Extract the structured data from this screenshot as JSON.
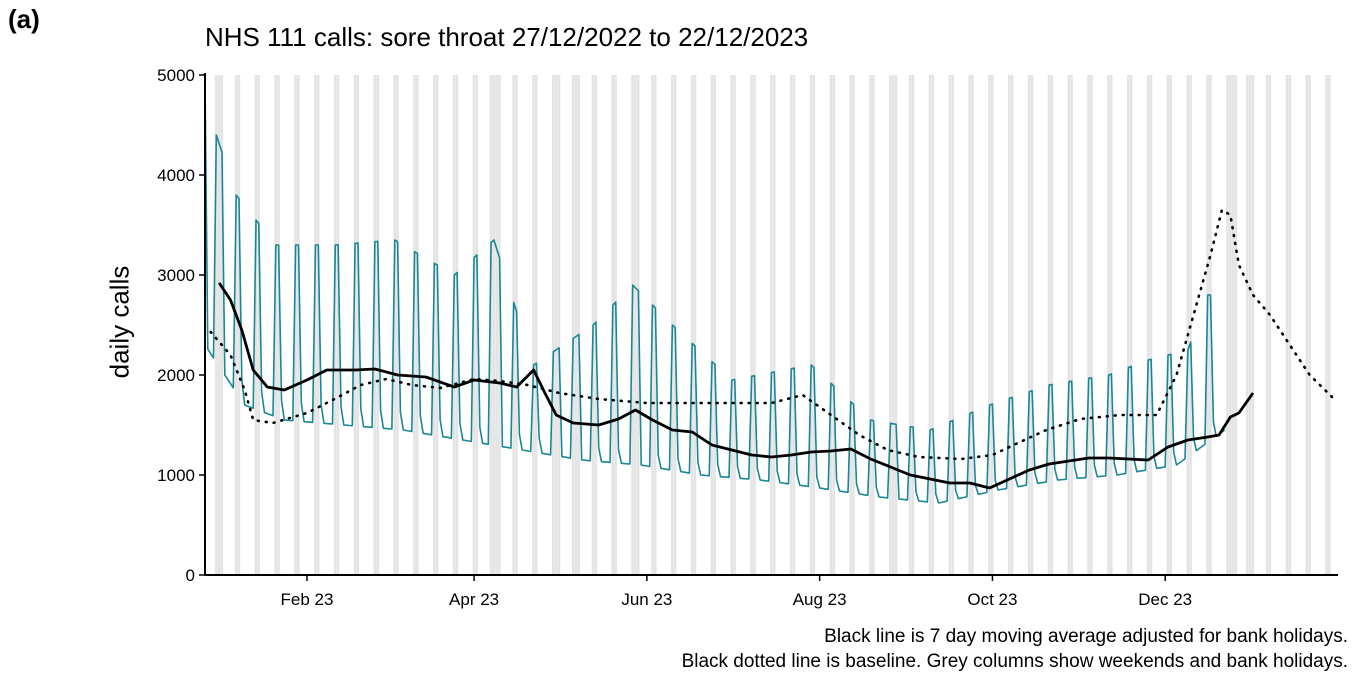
{
  "panel_label": "(a)",
  "chart_data": {
    "type": "line",
    "title": "NHS 111 calls: sore throat 27/12/2022 to 22/12/2023",
    "xlabel": "",
    "ylabel": "daily calls",
    "ylim": [
      0,
      5000
    ],
    "yticks": [
      0,
      1000,
      2000,
      3000,
      4000,
      5000
    ],
    "xlim": [
      "2022-12-27",
      "2024-01-31"
    ],
    "xticks": [
      {
        "date": "2023-02-01",
        "label": "Feb 23"
      },
      {
        "date": "2023-04-01",
        "label": "Apr 23"
      },
      {
        "date": "2023-06-01",
        "label": "Jun 23"
      },
      {
        "date": "2023-08-01",
        "label": "Aug 23"
      },
      {
        "date": "2023-10-01",
        "label": "Oct 23"
      },
      {
        "date": "2023-12-01",
        "label": "Dec 23"
      }
    ],
    "grid": false,
    "colors": {
      "daily": "#1a8696",
      "moving_average": "#000000",
      "baseline": "#000000",
      "weekend_columns": "#e4e4e4"
    },
    "bank_holidays": [
      "2023-01-02",
      "2023-04-07",
      "2023-04-10",
      "2023-05-01",
      "2023-05-08",
      "2023-05-29",
      "2023-08-28",
      "2023-12-25",
      "2023-12-26",
      "2024-01-01"
    ],
    "series": [
      {
        "key": "daily",
        "style": "solid-teal",
        "start": "2022-12-27",
        "weekday_anchors": [
          [
            "2022-12-27",
            2300
          ],
          [
            "2023-01-10",
            1700
          ],
          [
            "2023-01-24",
            1550
          ],
          [
            "2023-02-14",
            1500
          ],
          [
            "2023-03-07",
            1450
          ],
          [
            "2023-03-28",
            1350
          ],
          [
            "2023-04-18",
            1250
          ],
          [
            "2023-05-09",
            1150
          ],
          [
            "2023-05-30",
            1100
          ],
          [
            "2023-06-20",
            1000
          ],
          [
            "2023-07-11",
            950
          ],
          [
            "2023-08-01",
            870
          ],
          [
            "2023-08-22",
            780
          ],
          [
            "2023-09-12",
            720
          ],
          [
            "2023-10-03",
            850
          ],
          [
            "2023-10-24",
            950
          ],
          [
            "2023-11-14",
            1000
          ],
          [
            "2023-12-05",
            1100
          ],
          [
            "2023-12-22",
            1450
          ]
        ],
        "weekend_anchors": [
          [
            "2022-12-31",
            4400
          ],
          [
            "2023-01-07",
            3800
          ],
          [
            "2023-01-21",
            3300
          ],
          [
            "2023-02-11",
            3300
          ],
          [
            "2023-03-04",
            3350
          ],
          [
            "2023-03-25",
            3000
          ],
          [
            "2023-04-08",
            3350
          ],
          [
            "2023-04-22",
            2100
          ],
          [
            "2023-05-13",
            2500
          ],
          [
            "2023-05-27",
            2900
          ],
          [
            "2023-06-10",
            2500
          ],
          [
            "2023-07-01",
            1950
          ],
          [
            "2023-07-29",
            2100
          ],
          [
            "2023-08-19",
            1550
          ],
          [
            "2023-09-09",
            1450
          ],
          [
            "2023-09-30",
            1700
          ],
          [
            "2023-10-21",
            1900
          ],
          [
            "2023-11-11",
            2000
          ],
          [
            "2023-11-25",
            2150
          ],
          [
            "2023-12-09",
            2250
          ],
          [
            "2023-12-16",
            2800
          ]
        ]
      },
      {
        "key": "moving_average",
        "style": "solid-black",
        "points": [
          [
            "2023-01-01",
            2920
          ],
          [
            "2023-01-05",
            2750
          ],
          [
            "2023-01-09",
            2450
          ],
          [
            "2023-01-13",
            2050
          ],
          [
            "2023-01-18",
            1880
          ],
          [
            "2023-01-24",
            1850
          ],
          [
            "2023-02-01",
            1950
          ],
          [
            "2023-02-08",
            2050
          ],
          [
            "2023-02-18",
            2050
          ],
          [
            "2023-02-25",
            2060
          ],
          [
            "2023-03-05",
            2000
          ],
          [
            "2023-03-15",
            1980
          ],
          [
            "2023-03-25",
            1880
          ],
          [
            "2023-04-01",
            1950
          ],
          [
            "2023-04-10",
            1920
          ],
          [
            "2023-04-16",
            1880
          ],
          [
            "2023-04-22",
            2050
          ],
          [
            "2023-04-26",
            1820
          ],
          [
            "2023-04-30",
            1600
          ],
          [
            "2023-05-06",
            1520
          ],
          [
            "2023-05-15",
            1500
          ],
          [
            "2023-05-22",
            1560
          ],
          [
            "2023-05-28",
            1650
          ],
          [
            "2023-06-03",
            1550
          ],
          [
            "2023-06-10",
            1450
          ],
          [
            "2023-06-17",
            1430
          ],
          [
            "2023-06-24",
            1300
          ],
          [
            "2023-07-01",
            1250
          ],
          [
            "2023-07-08",
            1200
          ],
          [
            "2023-07-15",
            1180
          ],
          [
            "2023-07-22",
            1200
          ],
          [
            "2023-07-29",
            1230
          ],
          [
            "2023-08-05",
            1240
          ],
          [
            "2023-08-12",
            1260
          ],
          [
            "2023-08-19",
            1160
          ],
          [
            "2023-08-26",
            1080
          ],
          [
            "2023-09-02",
            1000
          ],
          [
            "2023-09-09",
            960
          ],
          [
            "2023-09-16",
            920
          ],
          [
            "2023-09-23",
            920
          ],
          [
            "2023-09-30",
            870
          ],
          [
            "2023-10-07",
            960
          ],
          [
            "2023-10-14",
            1050
          ],
          [
            "2023-10-21",
            1110
          ],
          [
            "2023-10-28",
            1140
          ],
          [
            "2023-11-04",
            1170
          ],
          [
            "2023-11-11",
            1170
          ],
          [
            "2023-11-18",
            1160
          ],
          [
            "2023-11-25",
            1150
          ],
          [
            "2023-12-02",
            1280
          ],
          [
            "2023-12-09",
            1350
          ],
          [
            "2023-12-16",
            1380
          ],
          [
            "2023-12-20",
            1400
          ],
          [
            "2023-12-24",
            1580
          ],
          [
            "2023-12-27",
            1620
          ],
          [
            "2024-01-01",
            1820
          ]
        ]
      },
      {
        "key": "baseline",
        "style": "dotted-black",
        "points": [
          [
            "2022-12-29",
            2430
          ],
          [
            "2023-01-05",
            2200
          ],
          [
            "2023-01-10",
            1850
          ],
          [
            "2023-01-13",
            1550
          ],
          [
            "2023-01-20",
            1520
          ],
          [
            "2023-02-01",
            1620
          ],
          [
            "2023-02-10",
            1750
          ],
          [
            "2023-02-20",
            1900
          ],
          [
            "2023-03-01",
            1960
          ],
          [
            "2023-03-10",
            1900
          ],
          [
            "2023-03-20",
            1870
          ],
          [
            "2023-04-01",
            1960
          ],
          [
            "2023-04-10",
            1940
          ],
          [
            "2023-04-20",
            1900
          ],
          [
            "2023-05-01",
            1820
          ],
          [
            "2023-05-15",
            1760
          ],
          [
            "2023-06-01",
            1720
          ],
          [
            "2023-06-15",
            1720
          ],
          [
            "2023-07-01",
            1720
          ],
          [
            "2023-07-15",
            1720
          ],
          [
            "2023-07-26",
            1800
          ],
          [
            "2023-08-05",
            1600
          ],
          [
            "2023-08-15",
            1400
          ],
          [
            "2023-08-25",
            1250
          ],
          [
            "2023-09-05",
            1180
          ],
          [
            "2023-09-20",
            1160
          ],
          [
            "2023-10-01",
            1200
          ],
          [
            "2023-10-10",
            1320
          ],
          [
            "2023-10-20",
            1450
          ],
          [
            "2023-11-01",
            1560
          ],
          [
            "2023-11-15",
            1600
          ],
          [
            "2023-11-28",
            1600
          ],
          [
            "2023-12-05",
            2000
          ],
          [
            "2023-12-11",
            2600
          ],
          [
            "2023-12-17",
            3200
          ],
          [
            "2023-12-21",
            3650
          ],
          [
            "2023-12-24",
            3600
          ],
          [
            "2023-12-27",
            3100
          ],
          [
            "2024-01-01",
            2800
          ],
          [
            "2024-01-07",
            2600
          ],
          [
            "2024-01-14",
            2300
          ],
          [
            "2024-01-21",
            2000
          ],
          [
            "2024-01-30",
            1750
          ]
        ]
      }
    ]
  },
  "captions": [
    "Black line is 7 day moving average adjusted for bank holidays.",
    "Black dotted line is baseline. Grey columns show weekends and bank holidays."
  ]
}
